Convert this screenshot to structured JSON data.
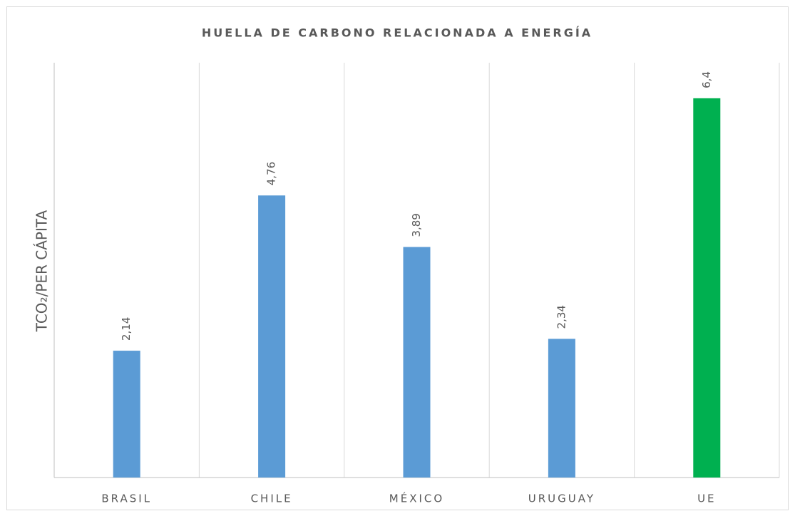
{
  "chart_data": {
    "type": "bar",
    "title": "HUELLA DE CARBONO RELACIONADA A ENERGÍA",
    "y_label": "TCO₂/PER CÁPITA",
    "categories": [
      "BRASIL",
      "CHILE",
      "MÉXICO",
      "URUGUAY",
      "UE"
    ],
    "values": [
      2.14,
      4.76,
      3.89,
      2.34,
      6.4
    ],
    "value_labels": [
      "2,14",
      "4,76",
      "3,89",
      "2,34",
      "6,4"
    ],
    "colors": [
      "#5b9bd5",
      "#5b9bd5",
      "#5b9bd5",
      "#5b9bd5",
      "#00b050"
    ],
    "ylim": [
      0,
      7
    ],
    "grid": true
  }
}
